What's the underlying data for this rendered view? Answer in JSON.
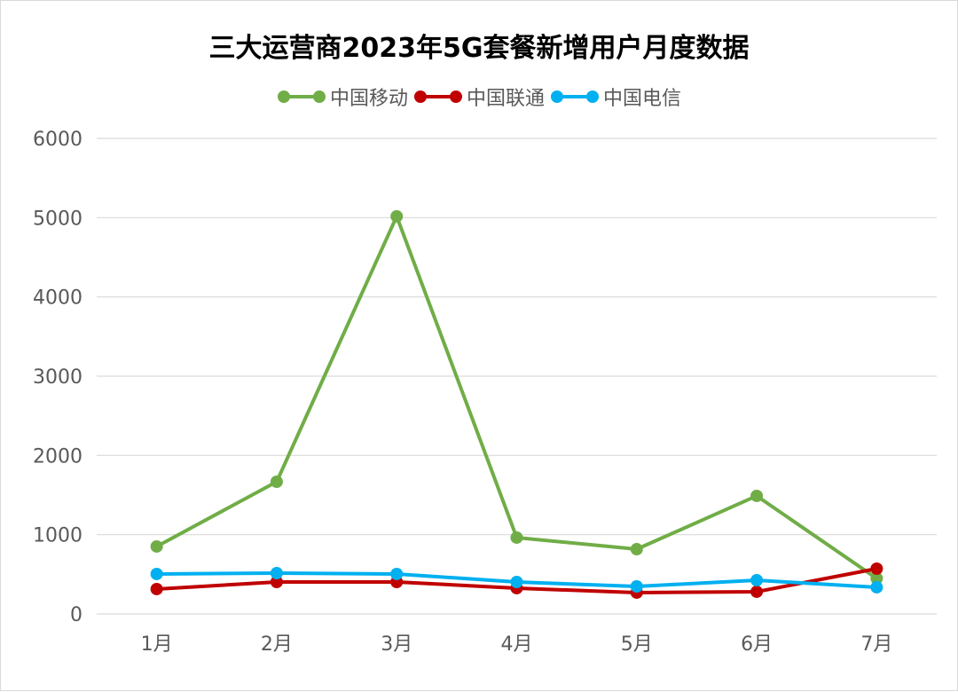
{
  "chart_data": {
    "type": "line",
    "title": "三大运营商2023年5G套餐新增用户月度数据",
    "categories": [
      "1月",
      "2月",
      "3月",
      "4月",
      "5月",
      "6月",
      "7月"
    ],
    "series": [
      {
        "name": "中国移动",
        "color": "#70ad47",
        "values": [
          851,
          1668,
          5017,
          963,
          817,
          1489,
          448
        ]
      },
      {
        "name": "中国联通",
        "color": "#c00000",
        "values": [
          314,
          403,
          403,
          325,
          269,
          280,
          571
        ]
      },
      {
        "name": "中国电信",
        "color": "#00b0f0",
        "values": [
          504,
          515,
          504,
          403,
          347,
          425,
          336
        ]
      }
    ],
    "yticks": [
      0,
      1000,
      2000,
      3000,
      4000,
      5000,
      6000
    ],
    "ylim": [
      0,
      6000
    ],
    "grid": true,
    "legend": "top"
  }
}
